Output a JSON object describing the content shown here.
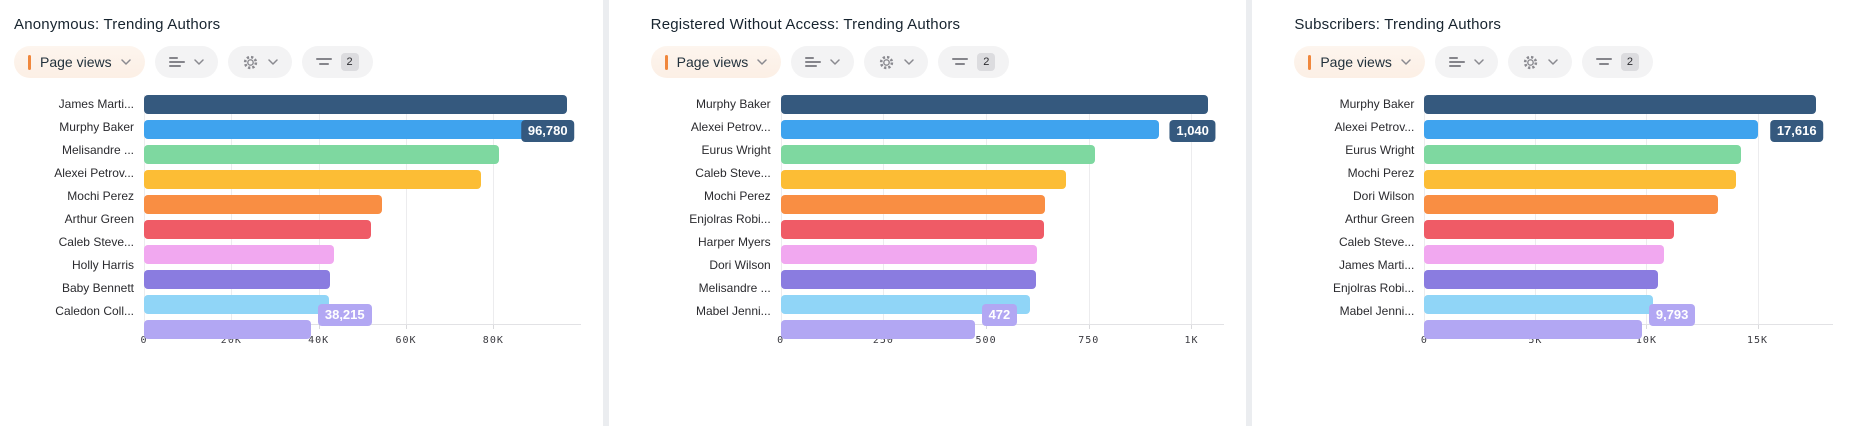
{
  "toolbar": {
    "metric_label": "Page views",
    "filter_badge": "2",
    "icon_names": [
      "chevron-down-icon",
      "chart-type-icon",
      "settings-gear-icon",
      "filter-lines-icon"
    ]
  },
  "colors": {
    "accent": "#f0873c",
    "bar_palette": [
      "#35597e",
      "#3fa3ee",
      "#7ed8a0",
      "#fcbd35",
      "#f98e43",
      "#ef5b66",
      "#f1a8f0",
      "#8a7ce0",
      "#90d5f7",
      "#b2a7f3"
    ],
    "max_label_bg": "#35597e",
    "min_label_bg": "#b2a7f3",
    "grid": "#ececee"
  },
  "chart_data": [
    {
      "type": "bar",
      "orientation": "horizontal",
      "title": "Anonymous: Trending Authors",
      "metric": "Page views",
      "categories": [
        "James Marti...",
        "Murphy Baker",
        "Melisandre ...",
        "Alexei Petrov...",
        "Mochi Perez",
        "Arthur Green",
        "Caleb Steve...",
        "Holly Harris",
        "Baby Bennett",
        "Caledon Coll..."
      ],
      "values": [
        96780,
        88000,
        81200,
        77100,
        54500,
        52000,
        43600,
        42600,
        42400,
        38215
      ],
      "value_labels": {
        "max": {
          "text": "96,780",
          "shown_at_row": 1
        },
        "min": {
          "text": "38,215",
          "shown_at_row": 9
        }
      },
      "axis": {
        "max": 100000,
        "tick_values": [
          0,
          20000,
          40000,
          60000,
          80000
        ],
        "tick_labels": [
          "0",
          "20K",
          "40K",
          "60K",
          "80K"
        ]
      },
      "grid": true,
      "legend": false
    },
    {
      "type": "bar",
      "orientation": "horizontal",
      "title": "Registered Without Access: Trending Authors",
      "metric": "Page views",
      "categories": [
        "Murphy Baker",
        "Alexei Petrov...",
        "Eurus Wright",
        "Caleb Steve...",
        "Mochi Perez",
        "Enjolras Robi...",
        "Harper Myers",
        "Dori Wilson",
        "Melisandre ...",
        "Mabel Jenni..."
      ],
      "values": [
        1040,
        920,
        765,
        695,
        643,
        640,
        625,
        622,
        607,
        472
      ],
      "value_labels": {
        "max": {
          "text": "1,040",
          "shown_at_row": 1
        },
        "min": {
          "text": "472",
          "shown_at_row": 9
        }
      },
      "axis": {
        "max": 1080,
        "tick_values": [
          0,
          250,
          500,
          750,
          1000
        ],
        "tick_labels": [
          "0",
          "250",
          "500",
          "750",
          "1K"
        ]
      },
      "grid": true,
      "legend": false
    },
    {
      "type": "bar",
      "orientation": "horizontal",
      "title": "Subscribers: Trending Authors",
      "metric": "Page views",
      "categories": [
        "Murphy Baker",
        "Alexei Petrov...",
        "Eurus Wright",
        "Mochi Perez",
        "Dori Wilson",
        "Arthur Green",
        "Caleb Steve...",
        "James Marti...",
        "Enjolras Robi...",
        "Mabel Jenni..."
      ],
      "values": [
        17616,
        15000,
        14250,
        14050,
        13200,
        11250,
        10800,
        10500,
        10300,
        9793
      ],
      "value_labels": {
        "max": {
          "text": "17,616",
          "shown_at_row": 1
        },
        "min": {
          "text": "9,793",
          "shown_at_row": 9
        }
      },
      "axis": {
        "max": 18400,
        "tick_values": [
          0,
          5000,
          10000,
          15000
        ],
        "tick_labels": [
          "0",
          "5K",
          "10K",
          "15K"
        ]
      },
      "grid": true,
      "legend": false
    }
  ]
}
